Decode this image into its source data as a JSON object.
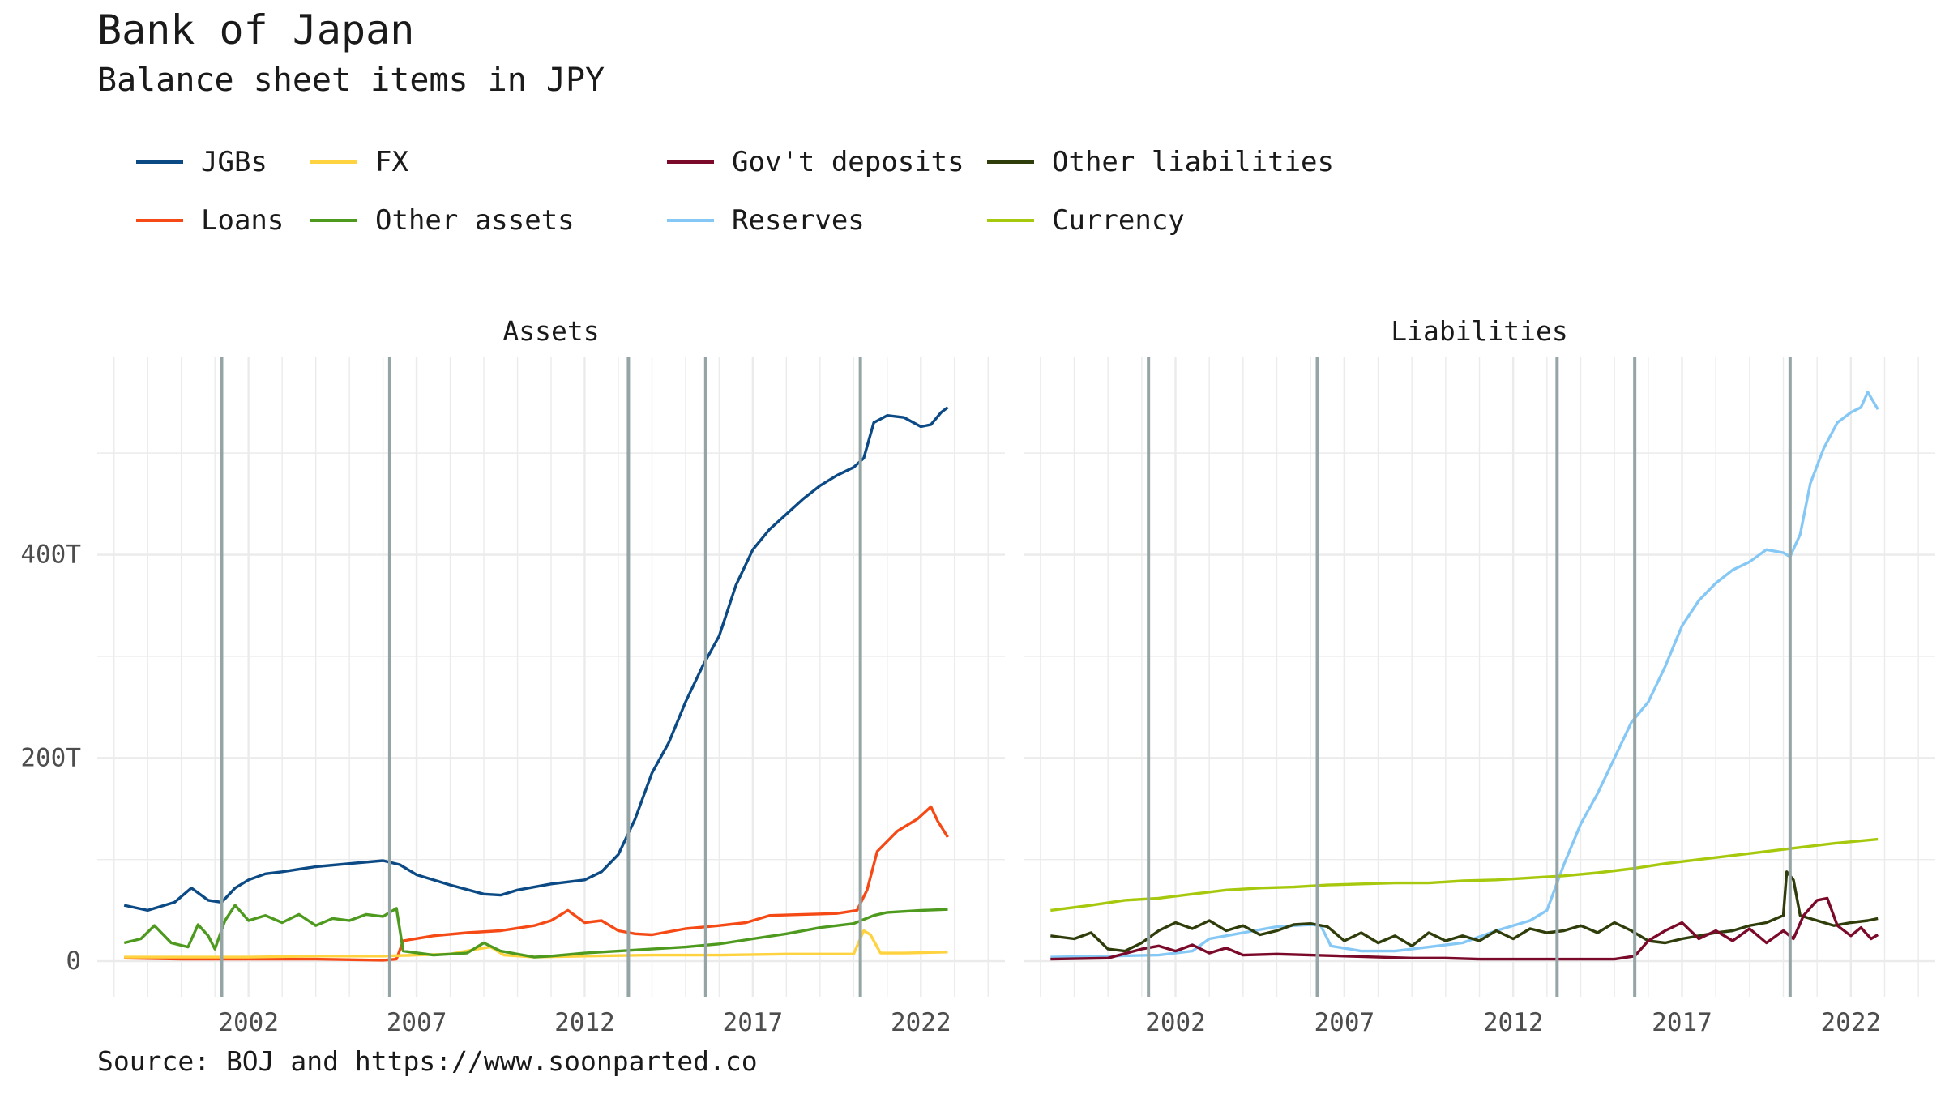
{
  "title": "Bank of Japan",
  "subtitle": "Balance sheet items in JPY",
  "caption": "Source: BOJ and https://www.soonparted.co",
  "chart_data": {
    "type": "line",
    "facets": [
      "Assets",
      "Liabilities"
    ],
    "xticks": [
      2002,
      2007,
      2012,
      2017,
      2022
    ],
    "yticks": [
      {
        "value": 0,
        "label": "0"
      },
      {
        "value": 200,
        "label": "200T"
      },
      {
        "value": 400,
        "label": "400T"
      }
    ],
    "xlim": [
      1997.5,
      2024.5
    ],
    "ylim": [
      -35,
      595
    ],
    "grid": true,
    "legend_position": "top",
    "vlines": [
      2001.2,
      2006.2,
      2013.3,
      2015.6,
      2020.2
    ],
    "vline_color": "#95a5a6",
    "legend": [
      {
        "name": "JGBs",
        "color": "#0b4a85"
      },
      {
        "name": "FX",
        "color": "#ffd23f"
      },
      {
        "name": "Gov't deposits",
        "color": "#7b0a2a"
      },
      {
        "name": "Other liabilities",
        "color": "#2f3d0b"
      },
      {
        "name": "Loans",
        "color": "#f64a16"
      },
      {
        "name": "Other assets",
        "color": "#4d9a1f"
      },
      {
        "name": "Reserves",
        "color": "#86c8f5"
      },
      {
        "name": "Currency",
        "color": "#a7c90d"
      }
    ],
    "series": [
      {
        "name": "JGBs",
        "facet": "Assets",
        "color": "#0b4a85",
        "points": [
          [
            1998.3,
            55
          ],
          [
            1999.0,
            50
          ],
          [
            1999.8,
            58
          ],
          [
            2000.3,
            72
          ],
          [
            2000.8,
            60
          ],
          [
            2001.2,
            58
          ],
          [
            2001.6,
            72
          ],
          [
            2002.0,
            80
          ],
          [
            2002.5,
            86
          ],
          [
            2003.0,
            88
          ],
          [
            2004.0,
            93
          ],
          [
            2005.0,
            96
          ],
          [
            2006.0,
            99
          ],
          [
            2006.5,
            95
          ],
          [
            2007.0,
            85
          ],
          [
            2008.0,
            75
          ],
          [
            2009.0,
            66
          ],
          [
            2009.5,
            65
          ],
          [
            2010.0,
            70
          ],
          [
            2011.0,
            76
          ],
          [
            2012.0,
            80
          ],
          [
            2012.5,
            88
          ],
          [
            2013.0,
            105
          ],
          [
            2013.5,
            140
          ],
          [
            2014.0,
            185
          ],
          [
            2014.5,
            215
          ],
          [
            2015.0,
            255
          ],
          [
            2015.5,
            290
          ],
          [
            2016.0,
            320
          ],
          [
            2016.5,
            370
          ],
          [
            2017.0,
            405
          ],
          [
            2017.5,
            425
          ],
          [
            2018.0,
            440
          ],
          [
            2018.5,
            455
          ],
          [
            2019.0,
            468
          ],
          [
            2019.5,
            478
          ],
          [
            2020.0,
            486
          ],
          [
            2020.3,
            495
          ],
          [
            2020.6,
            530
          ],
          [
            2021.0,
            537
          ],
          [
            2021.5,
            535
          ],
          [
            2022.0,
            526
          ],
          [
            2022.3,
            528
          ],
          [
            2022.6,
            540
          ],
          [
            2022.8,
            545
          ]
        ]
      },
      {
        "name": "Loans",
        "facet": "Assets",
        "color": "#f64a16",
        "points": [
          [
            1998.3,
            3
          ],
          [
            2000,
            2
          ],
          [
            2002,
            2
          ],
          [
            2004,
            2
          ],
          [
            2006,
            1
          ],
          [
            2006.4,
            2
          ],
          [
            2006.6,
            20
          ],
          [
            2007.5,
            25
          ],
          [
            2008.5,
            28
          ],
          [
            2009.5,
            30
          ],
          [
            2010.5,
            35
          ],
          [
            2011,
            40
          ],
          [
            2011.5,
            50
          ],
          [
            2012,
            38
          ],
          [
            2012.5,
            40
          ],
          [
            2013,
            30
          ],
          [
            2013.5,
            27
          ],
          [
            2014,
            26
          ],
          [
            2015,
            32
          ],
          [
            2016,
            35
          ],
          [
            2016.8,
            38
          ],
          [
            2017.5,
            45
          ],
          [
            2018.5,
            46
          ],
          [
            2019.5,
            47
          ],
          [
            2020.1,
            50
          ],
          [
            2020.4,
            70
          ],
          [
            2020.7,
            108
          ],
          [
            2021.3,
            128
          ],
          [
            2021.9,
            140
          ],
          [
            2022.3,
            152
          ],
          [
            2022.5,
            138
          ],
          [
            2022.8,
            122
          ]
        ]
      },
      {
        "name": "FX",
        "facet": "Assets",
        "color": "#ffd23f",
        "points": [
          [
            1998.3,
            4
          ],
          [
            2000,
            4
          ],
          [
            2002,
            4
          ],
          [
            2004,
            5
          ],
          [
            2006,
            5
          ],
          [
            2007,
            6
          ],
          [
            2008,
            7
          ],
          [
            2008.8,
            12
          ],
          [
            2009.2,
            14
          ],
          [
            2009.6,
            6
          ],
          [
            2010.5,
            4
          ],
          [
            2012,
            5
          ],
          [
            2014,
            6
          ],
          [
            2016,
            6
          ],
          [
            2018,
            7
          ],
          [
            2020,
            7
          ],
          [
            2020.3,
            30
          ],
          [
            2020.5,
            26
          ],
          [
            2020.8,
            8
          ],
          [
            2021.5,
            8
          ],
          [
            2022.8,
            9
          ]
        ]
      },
      {
        "name": "Other assets",
        "facet": "Assets",
        "color": "#4d9a1f",
        "points": [
          [
            1998.3,
            18
          ],
          [
            1998.8,
            22
          ],
          [
            1999.2,
            35
          ],
          [
            1999.7,
            18
          ],
          [
            2000.2,
            14
          ],
          [
            2000.5,
            36
          ],
          [
            2000.8,
            25
          ],
          [
            2001.0,
            12
          ],
          [
            2001.3,
            40
          ],
          [
            2001.6,
            55
          ],
          [
            2002.0,
            40
          ],
          [
            2002.5,
            45
          ],
          [
            2003.0,
            38
          ],
          [
            2003.5,
            46
          ],
          [
            2004.0,
            35
          ],
          [
            2004.5,
            42
          ],
          [
            2005.0,
            40
          ],
          [
            2005.5,
            46
          ],
          [
            2006.0,
            44
          ],
          [
            2006.4,
            52
          ],
          [
            2006.6,
            10
          ],
          [
            2007.5,
            6
          ],
          [
            2008.5,
            8
          ],
          [
            2009.0,
            18
          ],
          [
            2009.5,
            10
          ],
          [
            2010.5,
            4
          ],
          [
            2011,
            5
          ],
          [
            2012,
            8
          ],
          [
            2013,
            10
          ],
          [
            2014,
            12
          ],
          [
            2015,
            14
          ],
          [
            2016,
            17
          ],
          [
            2017,
            22
          ],
          [
            2018,
            27
          ],
          [
            2019,
            33
          ],
          [
            2020,
            37
          ],
          [
            2020.6,
            45
          ],
          [
            2021,
            48
          ],
          [
            2022,
            50
          ],
          [
            2022.8,
            51
          ]
        ]
      },
      {
        "name": "Reserves",
        "facet": "Liabilities",
        "color": "#86c8f5",
        "points": [
          [
            1998.3,
            4
          ],
          [
            2000,
            5
          ],
          [
            2001.5,
            6
          ],
          [
            2002.5,
            10
          ],
          [
            2003,
            22
          ],
          [
            2004,
            28
          ],
          [
            2005,
            34
          ],
          [
            2006,
            36
          ],
          [
            2006.3,
            35
          ],
          [
            2006.6,
            15
          ],
          [
            2007.5,
            10
          ],
          [
            2008.5,
            10
          ],
          [
            2009.5,
            14
          ],
          [
            2010.5,
            18
          ],
          [
            2011.5,
            30
          ],
          [
            2012.5,
            40
          ],
          [
            2013,
            50
          ],
          [
            2013.5,
            95
          ],
          [
            2014,
            135
          ],
          [
            2014.5,
            165
          ],
          [
            2015,
            200
          ],
          [
            2015.5,
            235
          ],
          [
            2016,
            255
          ],
          [
            2016.5,
            290
          ],
          [
            2017,
            330
          ],
          [
            2017.5,
            355
          ],
          [
            2018,
            372
          ],
          [
            2018.5,
            385
          ],
          [
            2019,
            393
          ],
          [
            2019.5,
            405
          ],
          [
            2020,
            402
          ],
          [
            2020.2,
            398
          ],
          [
            2020.5,
            420
          ],
          [
            2020.8,
            470
          ],
          [
            2021.2,
            505
          ],
          [
            2021.6,
            530
          ],
          [
            2022,
            540
          ],
          [
            2022.3,
            545
          ],
          [
            2022.5,
            560
          ],
          [
            2022.8,
            543
          ]
        ]
      },
      {
        "name": "Currency",
        "facet": "Liabilities",
        "color": "#a7c90d",
        "points": [
          [
            1998.3,
            50
          ],
          [
            1999.5,
            55
          ],
          [
            2000.5,
            60
          ],
          [
            2001.5,
            62
          ],
          [
            2002.5,
            66
          ],
          [
            2003.5,
            70
          ],
          [
            2004.5,
            72
          ],
          [
            2005.5,
            73
          ],
          [
            2006.5,
            75
          ],
          [
            2007.5,
            76
          ],
          [
            2008.5,
            77
          ],
          [
            2009.5,
            77
          ],
          [
            2010.5,
            79
          ],
          [
            2011.5,
            80
          ],
          [
            2012.5,
            82
          ],
          [
            2013.5,
            84
          ],
          [
            2014.5,
            87
          ],
          [
            2015.5,
            91
          ],
          [
            2016.5,
            96
          ],
          [
            2017.5,
            100
          ],
          [
            2018.5,
            104
          ],
          [
            2019.5,
            108
          ],
          [
            2020.5,
            112
          ],
          [
            2021.5,
            116
          ],
          [
            2022.8,
            120
          ]
        ]
      },
      {
        "name": "Other liabilities",
        "facet": "Liabilities",
        "color": "#2f3d0b",
        "points": [
          [
            1998.3,
            25
          ],
          [
            1999,
            22
          ],
          [
            1999.5,
            28
          ],
          [
            2000,
            12
          ],
          [
            2000.5,
            10
          ],
          [
            2001,
            18
          ],
          [
            2001.5,
            30
          ],
          [
            2002,
            38
          ],
          [
            2002.5,
            32
          ],
          [
            2003,
            40
          ],
          [
            2003.5,
            30
          ],
          [
            2004,
            35
          ],
          [
            2004.5,
            26
          ],
          [
            2005,
            30
          ],
          [
            2005.5,
            36
          ],
          [
            2006,
            37
          ],
          [
            2006.5,
            34
          ],
          [
            2007,
            20
          ],
          [
            2007.5,
            28
          ],
          [
            2008,
            18
          ],
          [
            2008.5,
            25
          ],
          [
            2009,
            15
          ],
          [
            2009.5,
            28
          ],
          [
            2010,
            20
          ],
          [
            2010.5,
            25
          ],
          [
            2011,
            20
          ],
          [
            2011.5,
            30
          ],
          [
            2012,
            22
          ],
          [
            2012.5,
            32
          ],
          [
            2013,
            28
          ],
          [
            2013.5,
            30
          ],
          [
            2014,
            35
          ],
          [
            2014.5,
            28
          ],
          [
            2015,
            38
          ],
          [
            2015.5,
            30
          ],
          [
            2016,
            20
          ],
          [
            2016.5,
            18
          ],
          [
            2017,
            22
          ],
          [
            2017.5,
            25
          ],
          [
            2018,
            28
          ],
          [
            2018.5,
            30
          ],
          [
            2019,
            35
          ],
          [
            2019.5,
            38
          ],
          [
            2020,
            45
          ],
          [
            2020.1,
            88
          ],
          [
            2020.3,
            80
          ],
          [
            2020.5,
            45
          ],
          [
            2021,
            40
          ],
          [
            2021.5,
            35
          ],
          [
            2022,
            38
          ],
          [
            2022.5,
            40
          ],
          [
            2022.8,
            42
          ]
        ]
      },
      {
        "name": "Gov't deposits",
        "facet": "Liabilities",
        "color": "#7b0a2a",
        "points": [
          [
            1998.3,
            2
          ],
          [
            2000,
            3
          ],
          [
            2001,
            12
          ],
          [
            2001.5,
            15
          ],
          [
            2002,
            10
          ],
          [
            2002.5,
            16
          ],
          [
            2003,
            8
          ],
          [
            2003.5,
            13
          ],
          [
            2004,
            6
          ],
          [
            2005,
            7
          ],
          [
            2006,
            6
          ],
          [
            2007,
            5
          ],
          [
            2008,
            4
          ],
          [
            2009,
            3
          ],
          [
            2010,
            3
          ],
          [
            2011,
            2
          ],
          [
            2012,
            2
          ],
          [
            2013,
            2
          ],
          [
            2014,
            2
          ],
          [
            2015,
            2
          ],
          [
            2015.6,
            5
          ],
          [
            2016,
            20
          ],
          [
            2016.5,
            30
          ],
          [
            2017,
            38
          ],
          [
            2017.5,
            22
          ],
          [
            2018,
            30
          ],
          [
            2018.5,
            20
          ],
          [
            2019,
            32
          ],
          [
            2019.5,
            18
          ],
          [
            2020,
            30
          ],
          [
            2020.3,
            22
          ],
          [
            2020.6,
            45
          ],
          [
            2021,
            60
          ],
          [
            2021.3,
            62
          ],
          [
            2021.6,
            35
          ],
          [
            2022,
            25
          ],
          [
            2022.3,
            33
          ],
          [
            2022.6,
            22
          ],
          [
            2022.8,
            26
          ]
        ]
      }
    ]
  }
}
